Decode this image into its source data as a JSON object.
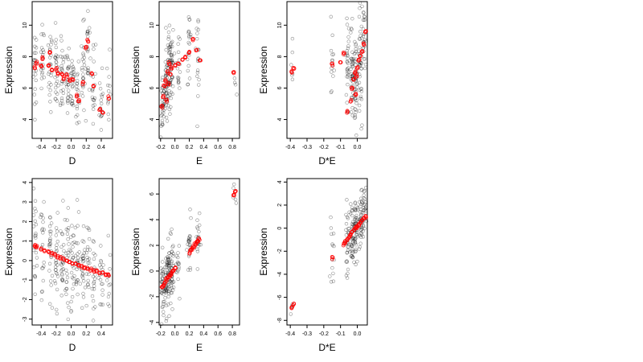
{
  "colors": {
    "background": "#ffffff",
    "axis": "#000000",
    "observed_points": "#000000",
    "fitted_points": "#ff0000"
  },
  "chart_data": [
    {
      "type": "scatter",
      "xlabel": "D",
      "ylabel": "Expression",
      "xlim": [
        -0.52,
        0.55
      ],
      "ylim": [
        2.8,
        11.5
      ],
      "xticks": [
        -0.4,
        -0.2,
        0.0,
        0.2,
        0.4
      ],
      "xtick_labels": [
        "-0.4",
        "-0.2",
        "0.0",
        "0.2",
        "0.4"
      ],
      "yticks": [
        4,
        6,
        8,
        10
      ],
      "ytick_labels": [
        "4",
        "6",
        "8",
        "10"
      ],
      "series": [
        {
          "role": "observed",
          "color": "#000000",
          "clusters": [
            {
              "x": -0.48,
              "y": 7.4,
              "sd": 1.3,
              "n": 22
            },
            {
              "x": -0.38,
              "y": 7.6,
              "sd": 1.2,
              "n": 20
            },
            {
              "x": -0.28,
              "y": 7.1,
              "sd": 1.3,
              "n": 24
            },
            {
              "x": -0.2,
              "y": 6.9,
              "sd": 1.3,
              "n": 26
            },
            {
              "x": -0.12,
              "y": 6.7,
              "sd": 1.2,
              "n": 24
            },
            {
              "x": -0.05,
              "y": 6.6,
              "sd": 1.3,
              "n": 26
            },
            {
              "x": 0.02,
              "y": 6.5,
              "sd": 1.2,
              "n": 24
            },
            {
              "x": 0.08,
              "y": 5.6,
              "sd": 1.4,
              "n": 24
            },
            {
              "x": 0.16,
              "y": 6.9,
              "sd": 1.5,
              "n": 24
            },
            {
              "x": 0.22,
              "y": 8.3,
              "sd": 1.5,
              "n": 22
            },
            {
              "x": 0.3,
              "y": 6.5,
              "sd": 1.3,
              "n": 20
            },
            {
              "x": 0.4,
              "y": 4.7,
              "sd": 1.1,
              "n": 18
            },
            {
              "x": 0.5,
              "y": 5.6,
              "sd": 1.3,
              "n": 14
            }
          ]
        },
        {
          "role": "fitted",
          "color": "#ff0000",
          "x": [
            -0.48,
            -0.46,
            -0.4,
            -0.38,
            -0.3,
            -0.28,
            -0.26,
            -0.2,
            -0.18,
            -0.12,
            -0.1,
            -0.06,
            -0.02,
            0.02,
            0.08,
            0.1,
            0.16,
            0.2,
            0.22,
            0.28,
            0.3,
            0.38,
            0.42,
            0.5
          ],
          "y": [
            7.3,
            7.6,
            7.4,
            7.9,
            7.4,
            8.3,
            7.1,
            7.2,
            6.9,
            6.9,
            6.6,
            6.8,
            6.5,
            6.5,
            5.5,
            5.2,
            6.3,
            8.6,
            9.0,
            6.9,
            6.1,
            4.6,
            4.5,
            5.4
          ]
        }
      ]
    },
    {
      "type": "scatter",
      "xlabel": "E",
      "ylabel": "Expression",
      "xlim": [
        -0.22,
        0.9
      ],
      "ylim": [
        2.8,
        11.5
      ],
      "xticks": [
        -0.2,
        0.0,
        0.2,
        0.4,
        0.6,
        0.8
      ],
      "xtick_labels": [
        "-0.2",
        "0.0",
        "0.2",
        "0.4",
        "0.6",
        "0.8"
      ],
      "yticks": [
        4,
        6,
        8,
        10
      ],
      "ytick_labels": [
        "4",
        "6",
        "8",
        "10"
      ],
      "series": [
        {
          "role": "observed",
          "color": "#000000",
          "clusters": [
            {
              "x": -0.17,
              "y": 4.9,
              "sd": 1.1,
              "n": 34
            },
            {
              "x": -0.12,
              "y": 5.9,
              "sd": 1.2,
              "n": 40
            },
            {
              "x": -0.08,
              "y": 6.8,
              "sd": 1.3,
              "n": 40
            },
            {
              "x": -0.04,
              "y": 7.4,
              "sd": 1.2,
              "n": 34
            },
            {
              "x": 0.05,
              "y": 7.8,
              "sd": 1.0,
              "n": 16
            },
            {
              "x": 0.2,
              "y": 8.7,
              "sd": 1.2,
              "n": 22
            },
            {
              "x": 0.32,
              "y": 8.4,
              "sd": 1.2,
              "n": 20
            },
            {
              "x": 0.83,
              "y": 6.6,
              "sd": 0.6,
              "n": 4
            }
          ]
        },
        {
          "role": "fitted",
          "color": "#ff0000",
          "x": [
            -0.18,
            -0.16,
            -0.15,
            -0.13,
            -0.12,
            -0.1,
            -0.09,
            -0.08,
            -0.06,
            -0.05,
            0.0,
            0.05,
            0.1,
            0.15,
            0.2,
            0.25,
            0.3,
            0.35,
            0.82
          ],
          "y": [
            4.8,
            5.5,
            6.1,
            6.5,
            5.2,
            7.0,
            6.3,
            7.6,
            6.9,
            7.3,
            7.4,
            7.6,
            7.8,
            8.0,
            8.3,
            9.1,
            8.4,
            7.7,
            7.0
          ]
        }
      ]
    },
    {
      "type": "scatter",
      "xlabel": "D*E",
      "ylabel": "Expression",
      "xlim": [
        -0.42,
        0.06
      ],
      "ylim": [
        2.8,
        11.5
      ],
      "xticks": [
        -0.4,
        -0.3,
        -0.2,
        -0.1,
        0.0
      ],
      "xtick_labels": [
        "-0.4",
        "-0.3",
        "-0.2",
        "-0.1",
        "0.0"
      ],
      "yticks": [
        4,
        6,
        8,
        10
      ],
      "ytick_labels": [
        "4",
        "6",
        "8",
        "10"
      ],
      "series": [
        {
          "role": "observed",
          "color": "#000000",
          "clusters": [
            {
              "x": -0.39,
              "y": 6.8,
              "sd": 1.0,
              "n": 6
            },
            {
              "x": -0.15,
              "y": 7.3,
              "sd": 1.6,
              "n": 14
            },
            {
              "x": -0.06,
              "y": 7.6,
              "sd": 1.5,
              "n": 30
            },
            {
              "x": -0.03,
              "y": 7.0,
              "sd": 1.6,
              "n": 40
            },
            {
              "x": -0.01,
              "y": 6.2,
              "sd": 1.7,
              "n": 46
            },
            {
              "x": 0.02,
              "y": 7.6,
              "sd": 1.6,
              "n": 40
            },
            {
              "x": 0.04,
              "y": 8.8,
              "sd": 1.5,
              "n": 26
            }
          ]
        },
        {
          "role": "fitted",
          "color": "#ff0000",
          "x": [
            -0.39,
            -0.38,
            -0.15,
            -0.1,
            -0.08,
            -0.06,
            -0.04,
            -0.03,
            -0.02,
            -0.015,
            -0.01,
            -0.005,
            0.0,
            0.01,
            0.02,
            0.03,
            0.04,
            0.05
          ],
          "y": [
            7.0,
            7.2,
            7.5,
            7.6,
            8.2,
            4.5,
            5.2,
            6.0,
            6.5,
            7.0,
            5.6,
            6.8,
            7.3,
            7.8,
            8.1,
            8.3,
            8.8,
            9.6
          ]
        }
      ]
    },
    {
      "type": "scatter",
      "xlabel": "D",
      "ylabel": "Expression",
      "xlim": [
        -0.52,
        0.55
      ],
      "ylim": [
        -3.3,
        4.2
      ],
      "xticks": [
        -0.4,
        -0.2,
        0.0,
        0.2,
        0.4
      ],
      "xtick_labels": [
        "-0.4",
        "-0.2",
        "0.0",
        "0.2",
        "0.4"
      ],
      "yticks": [
        -3,
        -2,
        -1,
        0,
        1,
        2,
        3,
        4
      ],
      "ytick_labels": [
        "-3",
        "-2",
        "-1",
        "0",
        "1",
        "2",
        "3",
        "4"
      ],
      "series": [
        {
          "role": "observed",
          "color": "#000000",
          "clusters": [
            {
              "x": -0.48,
              "y": 0.8,
              "sd": 1.3,
              "n": 22
            },
            {
              "x": -0.38,
              "y": 0.5,
              "sd": 1.3,
              "n": 20
            },
            {
              "x": -0.28,
              "y": 0.4,
              "sd": 1.3,
              "n": 24
            },
            {
              "x": -0.2,
              "y": 0.2,
              "sd": 1.3,
              "n": 26
            },
            {
              "x": -0.12,
              "y": 0.1,
              "sd": 1.3,
              "n": 24
            },
            {
              "x": -0.05,
              "y": -0.1,
              "sd": 1.3,
              "n": 26
            },
            {
              "x": 0.02,
              "y": -0.1,
              "sd": 1.3,
              "n": 24
            },
            {
              "x": 0.08,
              "y": -0.3,
              "sd": 1.3,
              "n": 24
            },
            {
              "x": 0.16,
              "y": -0.2,
              "sd": 1.3,
              "n": 24
            },
            {
              "x": 0.22,
              "y": -0.4,
              "sd": 1.2,
              "n": 22
            },
            {
              "x": 0.3,
              "y": -0.4,
              "sd": 1.2,
              "n": 20
            },
            {
              "x": 0.4,
              "y": -0.6,
              "sd": 1.2,
              "n": 18
            },
            {
              "x": 0.5,
              "y": -0.7,
              "sd": 1.1,
              "n": 14
            }
          ]
        },
        {
          "role": "fitted",
          "color": "#ff0000",
          "x": [
            -0.48,
            -0.46,
            -0.4,
            -0.36,
            -0.3,
            -0.26,
            -0.22,
            -0.18,
            -0.14,
            -0.1,
            -0.06,
            -0.02,
            0.02,
            0.06,
            0.1,
            0.14,
            0.18,
            0.22,
            0.26,
            0.3,
            0.34,
            0.38,
            0.42,
            0.46,
            0.5
          ],
          "y": [
            0.75,
            0.72,
            0.6,
            0.52,
            0.42,
            0.35,
            0.28,
            0.2,
            0.13,
            0.06,
            0.0,
            -0.07,
            -0.12,
            -0.18,
            -0.24,
            -0.3,
            -0.35,
            -0.4,
            -0.46,
            -0.52,
            -0.56,
            -0.6,
            -0.65,
            -0.7,
            -0.75
          ]
        }
      ]
    },
    {
      "type": "scatter",
      "xlabel": "E",
      "ylabel": "Expression",
      "xlim": [
        -0.22,
        0.9
      ],
      "ylim": [
        -4.2,
        7.2
      ],
      "xticks": [
        -0.2,
        0.0,
        0.2,
        0.4,
        0.6,
        0.8
      ],
      "xtick_labels": [
        "-0.2",
        "0.0",
        "0.2",
        "0.4",
        "0.6",
        "0.8"
      ],
      "yticks": [
        -4,
        -2,
        0,
        2,
        4,
        6
      ],
      "ytick_labels": [
        "-4",
        "-2",
        "0",
        "2",
        "4",
        "6"
      ],
      "series": [
        {
          "role": "observed",
          "color": "#000000",
          "clusters": [
            {
              "x": -0.17,
              "y": -1.3,
              "sd": 1.3,
              "n": 34
            },
            {
              "x": -0.12,
              "y": -0.8,
              "sd": 1.3,
              "n": 40
            },
            {
              "x": -0.08,
              "y": -0.4,
              "sd": 1.3,
              "n": 40
            },
            {
              "x": -0.04,
              "y": 0.0,
              "sd": 1.2,
              "n": 34
            },
            {
              "x": 0.05,
              "y": 0.6,
              "sd": 1.1,
              "n": 16
            },
            {
              "x": 0.2,
              "y": 1.6,
              "sd": 1.1,
              "n": 22
            },
            {
              "x": 0.32,
              "y": 2.5,
              "sd": 1.1,
              "n": 20
            },
            {
              "x": 0.83,
              "y": 5.8,
              "sd": 0.7,
              "n": 5
            }
          ]
        },
        {
          "role": "fitted",
          "color": "#ff0000",
          "x": [
            -0.18,
            -0.16,
            -0.14,
            -0.12,
            -0.1,
            -0.08,
            -0.06,
            -0.04,
            -0.02,
            0.0,
            0.2,
            0.22,
            0.24,
            0.26,
            0.28,
            0.3,
            0.32,
            0.34,
            0.82,
            0.84
          ],
          "y": [
            -1.3,
            -1.1,
            -0.9,
            -0.7,
            -0.55,
            -0.4,
            -0.25,
            -0.1,
            0.05,
            0.2,
            1.4,
            1.6,
            1.75,
            1.9,
            2.05,
            2.2,
            2.35,
            2.5,
            5.9,
            6.2
          ]
        }
      ]
    },
    {
      "type": "scatter",
      "xlabel": "D*E",
      "ylabel": "Expression",
      "xlim": [
        -0.42,
        0.06
      ],
      "ylim": [
        -8.4,
        4.3
      ],
      "xticks": [
        -0.4,
        -0.3,
        -0.2,
        -0.1,
        0.0
      ],
      "xtick_labels": [
        "-0.4",
        "-0.3",
        "-0.2",
        "-0.1",
        "0.0"
      ],
      "yticks": [
        -8,
        -6,
        -4,
        -2,
        0,
        2,
        4
      ],
      "ytick_labels": [
        "-8",
        "-6",
        "-4",
        "-2",
        "0",
        "2",
        "4"
      ],
      "series": [
        {
          "role": "observed",
          "color": "#000000",
          "clusters": [
            {
              "x": -0.39,
              "y": -6.9,
              "sd": 0.6,
              "n": 4
            },
            {
              "x": -0.15,
              "y": -2.8,
              "sd": 1.5,
              "n": 14
            },
            {
              "x": -0.06,
              "y": -1.2,
              "sd": 1.4,
              "n": 30
            },
            {
              "x": -0.03,
              "y": -0.4,
              "sd": 1.4,
              "n": 40
            },
            {
              "x": -0.01,
              "y": 0.1,
              "sd": 1.4,
              "n": 46
            },
            {
              "x": 0.02,
              "y": 0.6,
              "sd": 1.3,
              "n": 40
            },
            {
              "x": 0.04,
              "y": 1.1,
              "sd": 1.2,
              "n": 26
            }
          ]
        },
        {
          "role": "fitted",
          "color": "#ff0000",
          "x": [
            -0.39,
            -0.38,
            -0.15,
            -0.08,
            -0.07,
            -0.06,
            -0.05,
            -0.04,
            -0.03,
            -0.02,
            -0.01,
            0.0,
            0.01,
            0.02,
            0.03,
            0.04,
            0.05
          ],
          "y": [
            -6.9,
            -6.6,
            -2.6,
            -1.4,
            -1.2,
            -1.0,
            -0.8,
            -0.6,
            -0.4,
            -0.2,
            0.0,
            0.1,
            0.3,
            0.5,
            0.7,
            0.85,
            1.0
          ]
        }
      ]
    }
  ]
}
